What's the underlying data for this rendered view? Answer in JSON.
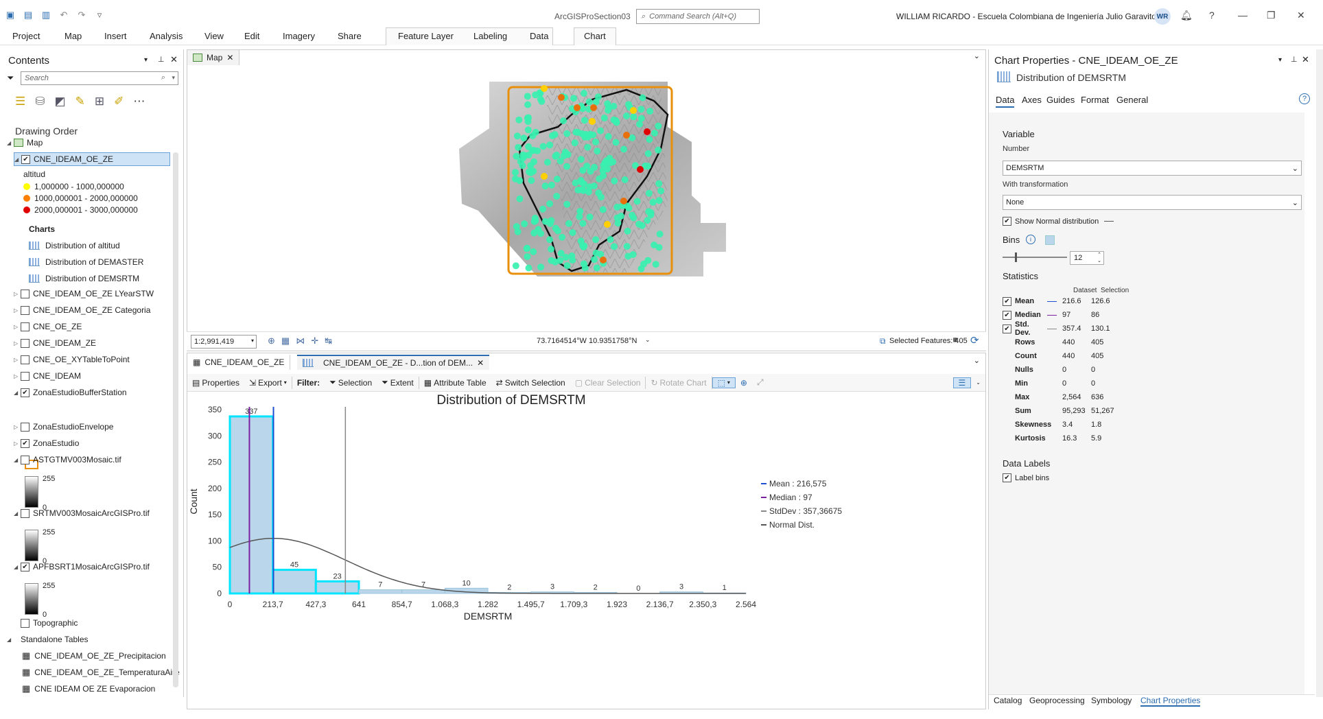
{
  "app": {
    "title": "ArcGISProSection03",
    "command_search_placeholder": "Command Search (Alt+Q)",
    "user_label": "WILLIAM RICARDO  -  Escuela Colombiana de Ingeniería Julio Garavito",
    "user_initials": "WR",
    "help": "?"
  },
  "ribbon": {
    "tabs": [
      "Project",
      "Map",
      "Insert",
      "Analysis",
      "View",
      "Edit",
      "Imagery",
      "Share"
    ],
    "context_tabs": [
      "Feature Layer",
      "Labeling",
      "Data"
    ],
    "chart_tab": "Chart"
  },
  "contents": {
    "title": "Contents",
    "search_placeholder": "Search",
    "drawing_order": "Drawing Order",
    "map_label": "Map",
    "layer_selected": "CNE_IDEAM_OE_ZE",
    "legend_field": "altitud",
    "legend_items": [
      {
        "label": "1,000000 - 1000,000000",
        "color": "#ffff00"
      },
      {
        "label": "1000,000001 - 2000,000000",
        "color": "#ff8000"
      },
      {
        "label": "2000,000001 - 3000,000000",
        "color": "#e00000"
      }
    ],
    "charts_header": "Charts",
    "charts": [
      "Distribution of altitud",
      "Distribution of DEMASTER",
      "Distribution of DEMSRTM"
    ],
    "layers": [
      {
        "label": "CNE_IDEAM_OE_ZE LYearSTW",
        "checked": false
      },
      {
        "label": "CNE_IDEAM_OE_ZE Categoria",
        "checked": false
      },
      {
        "label": "CNE_OE_ZE",
        "checked": false
      },
      {
        "label": "CNE_IDEAM_ZE",
        "checked": false
      },
      {
        "label": "CNE_OE_XYTableToPoint",
        "checked": false
      },
      {
        "label": "CNE_IDEAM",
        "checked": false
      }
    ],
    "buffer_layer": "ZonaEstudioBufferStation",
    "envelope_layer": "ZonaEstudioEnvelope",
    "zona_layer": "ZonaEstudio",
    "rasters": [
      {
        "label": "ASTGTMV003Mosaic.tif",
        "checked": false,
        "high": "255",
        "low": "0"
      },
      {
        "label": "SRTMV003MosaicArcGISPro.tif",
        "checked": false,
        "high": "255",
        "low": "0"
      },
      {
        "label": "APFBSRT1MosaicArcGISPro.tif",
        "checked": true,
        "high": "255",
        "low": "0"
      }
    ],
    "topographic": "Topographic",
    "standalone_header": "Standalone Tables",
    "tables": [
      "CNE_IDEAM_OE_ZE_Precipitacion",
      "CNE_IDEAM_OE_ZE_TemperaturaAire",
      "CNE IDEAM OE ZE Evaporacion"
    ]
  },
  "map": {
    "tab_label": "Map",
    "scale": "1:2,991,419",
    "coords": "73.7164514°W 10.9351758°N",
    "selected_features": "Selected Features: 405"
  },
  "chart_tabs": {
    "table_tab": "CNE_IDEAM_OE_ZE",
    "chart_tab": "CNE_IDEAM_OE_ZE  - D...tion of DEM..."
  },
  "chart_toolbar": {
    "properties": "Properties",
    "export": "Export",
    "filter": "Filter:",
    "selection": "Selection",
    "extent": "Extent",
    "attribute_table": "Attribute Table",
    "switch_selection": "Switch Selection",
    "clear_selection": "Clear Selection",
    "rotate_chart": "Rotate Chart"
  },
  "chart_data": {
    "type": "bar",
    "title": "Distribution of DEMSRTM",
    "xlabel": "DEMSRTM",
    "ylabel": "Count",
    "ylim": [
      0,
      350
    ],
    "yticks": [
      "0",
      "50",
      "100",
      "150",
      "200",
      "250",
      "300",
      "350"
    ],
    "xticks": [
      "0",
      "213,7",
      "427,3",
      "641",
      "854,7",
      "1.068,3",
      "1.282",
      "1.495,7",
      "1.709,3",
      "1.923",
      "2.136,7",
      "2.350,3",
      "2.564"
    ],
    "xlim": [
      0,
      2564
    ],
    "bin_counts": [
      337,
      45,
      23,
      7,
      7,
      10,
      2,
      3,
      2,
      0,
      3,
      1
    ],
    "bin_labels": [
      "337",
      "45",
      "23",
      "7",
      "7",
      "10",
      "2",
      "3",
      "2",
      "0",
      "3",
      "1"
    ],
    "mean": 216.575,
    "median": 97,
    "stddev": 357.36675,
    "legend": [
      "Mean : 216,575",
      "Median : 97",
      "StdDev : 357,36675",
      "Normal Dist."
    ],
    "legend_position": "right",
    "colors": {
      "selected_bin": "#00e5ff",
      "bin_fill": "#b9d6ea",
      "mean": "#1f4fd1",
      "median": "#7b1fa2",
      "stddev": "#888888",
      "normal": "#555555"
    }
  },
  "props": {
    "title": "Chart Properties - CNE_IDEAM_OE_ZE",
    "subtitle": "Distribution of DEMSRTM",
    "tabs": [
      "Data",
      "Axes",
      "Guides",
      "Format",
      "General"
    ],
    "variable": "Variable",
    "number": "Number",
    "number_value": "DEMSRTM",
    "with_transformation": "With transformation",
    "transformation_value": "None",
    "show_normal": "Show Normal distribution",
    "bins": "Bins",
    "bins_value": "12",
    "statistics": "Statistics",
    "col_dataset": "Dataset",
    "col_selection": "Selection",
    "stats": [
      {
        "label": "Mean",
        "check": true,
        "dataset": "216.6",
        "selection": "126.6",
        "line": "#1f4fd1"
      },
      {
        "label": "Median",
        "check": true,
        "dataset": "97",
        "selection": "86",
        "line": "#7b1fa2"
      },
      {
        "label": "Std. Dev.",
        "check": true,
        "dataset": "357.4",
        "selection": "130.1",
        "line": "#888888"
      },
      {
        "label": "Rows",
        "dataset": "440",
        "selection": "405"
      },
      {
        "label": "Count",
        "dataset": "440",
        "selection": "405"
      },
      {
        "label": "Nulls",
        "dataset": "0",
        "selection": "0"
      },
      {
        "label": "Min",
        "dataset": "0",
        "selection": "0"
      },
      {
        "label": "Max",
        "dataset": "2,564",
        "selection": "636"
      },
      {
        "label": "Sum",
        "dataset": "95,293",
        "selection": "51,267"
      },
      {
        "label": "Skewness",
        "dataset": "3.4",
        "selection": "1.8"
      },
      {
        "label": "Kurtosis",
        "dataset": "16.3",
        "selection": "5.9"
      }
    ],
    "data_labels": "Data Labels",
    "label_bins": "Label bins"
  },
  "bottom_tabs": [
    "Catalog",
    "Geoprocessing",
    "Symbology",
    "Chart Properties"
  ]
}
